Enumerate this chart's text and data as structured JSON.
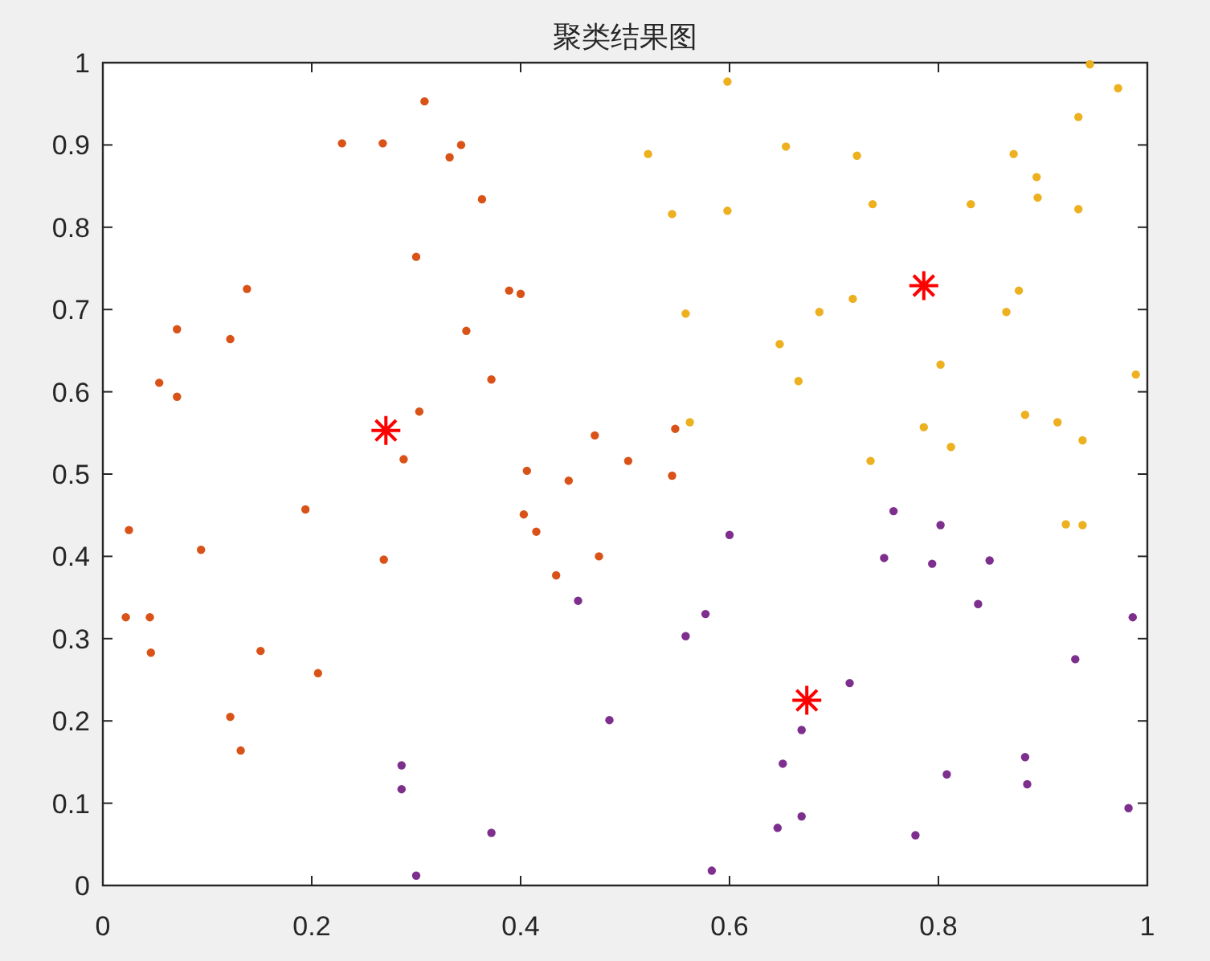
{
  "chart_data": {
    "type": "scatter",
    "title": "聚类结果图",
    "xlim": [
      0,
      1
    ],
    "ylim": [
      0,
      1
    ],
    "xticks": [
      0,
      0.2,
      0.4,
      0.6,
      0.8,
      1
    ],
    "yticks": [
      0,
      0.1,
      0.2,
      0.3,
      0.4,
      0.5,
      0.6,
      0.7,
      0.8,
      0.9,
      1
    ],
    "grid": false,
    "series": [
      {
        "color": "#d95319",
        "marker": "circle",
        "x": [
          0.229,
          0.268,
          0.308,
          0.332,
          0.343,
          0.363,
          0.3,
          0.138,
          0.071,
          0.122,
          0.389,
          0.4,
          0.348,
          0.372,
          0.303,
          0.054,
          0.071,
          0.288,
          0.406,
          0.471,
          0.446,
          0.503,
          0.548,
          0.545,
          0.403,
          0.415,
          0.475,
          0.434,
          0.194,
          0.269,
          0.025,
          0.094,
          0.022,
          0.045,
          0.046,
          0.151,
          0.206,
          0.122,
          0.132
        ],
        "values": [
          0.902,
          0.902,
          0.953,
          0.885,
          0.9,
          0.834,
          0.764,
          0.725,
          0.676,
          0.664,
          0.723,
          0.719,
          0.674,
          0.615,
          0.576,
          0.611,
          0.594,
          0.518,
          0.504,
          0.547,
          0.492,
          0.516,
          0.555,
          0.498,
          0.451,
          0.43,
          0.4,
          0.377,
          0.457,
          0.396,
          0.432,
          0.408,
          0.326,
          0.326,
          0.283,
          0.285,
          0.258,
          0.205,
          0.164
        ]
      },
      {
        "color": "#edb120",
        "marker": "circle",
        "x": [
          0.598,
          0.945,
          0.972,
          0.934,
          0.522,
          0.654,
          0.722,
          0.872,
          0.545,
          0.598,
          0.737,
          0.831,
          0.894,
          0.895,
          0.934,
          0.877,
          0.865,
          0.558,
          0.686,
          0.718,
          0.648,
          0.666,
          0.562,
          0.802,
          0.989,
          0.883,
          0.786,
          0.812,
          0.914,
          0.938,
          0.735,
          0.922,
          0.938
        ],
        "values": [
          0.977,
          0.998,
          0.969,
          0.934,
          0.889,
          0.898,
          0.887,
          0.889,
          0.816,
          0.82,
          0.828,
          0.828,
          0.861,
          0.836,
          0.822,
          0.723,
          0.697,
          0.695,
          0.697,
          0.713,
          0.658,
          0.613,
          0.563,
          0.633,
          0.621,
          0.572,
          0.557,
          0.533,
          0.563,
          0.541,
          0.516,
          0.439,
          0.438
        ]
      },
      {
        "color": "#7e2f8e",
        "marker": "circle",
        "x": [
          0.757,
          0.802,
          0.6,
          0.748,
          0.794,
          0.849,
          0.986,
          0.931,
          0.838,
          0.577,
          0.455,
          0.558,
          0.485,
          0.715,
          0.669,
          0.651,
          0.883,
          0.885,
          0.808,
          0.646,
          0.669,
          0.982,
          0.778,
          0.286,
          0.286,
          0.372,
          0.3,
          0.583
        ],
        "values": [
          0.455,
          0.438,
          0.426,
          0.398,
          0.391,
          0.395,
          0.326,
          0.275,
          0.342,
          0.33,
          0.346,
          0.303,
          0.201,
          0.246,
          0.189,
          0.148,
          0.156,
          0.123,
          0.135,
          0.07,
          0.084,
          0.094,
          0.061,
          0.146,
          0.117,
          0.064,
          0.012,
          0.018
        ]
      },
      {
        "color": "#ff0000",
        "marker": "cross",
        "x": [
          0.271,
          0.786,
          0.674
        ],
        "values": [
          0.553,
          0.729,
          0.225
        ]
      }
    ]
  }
}
